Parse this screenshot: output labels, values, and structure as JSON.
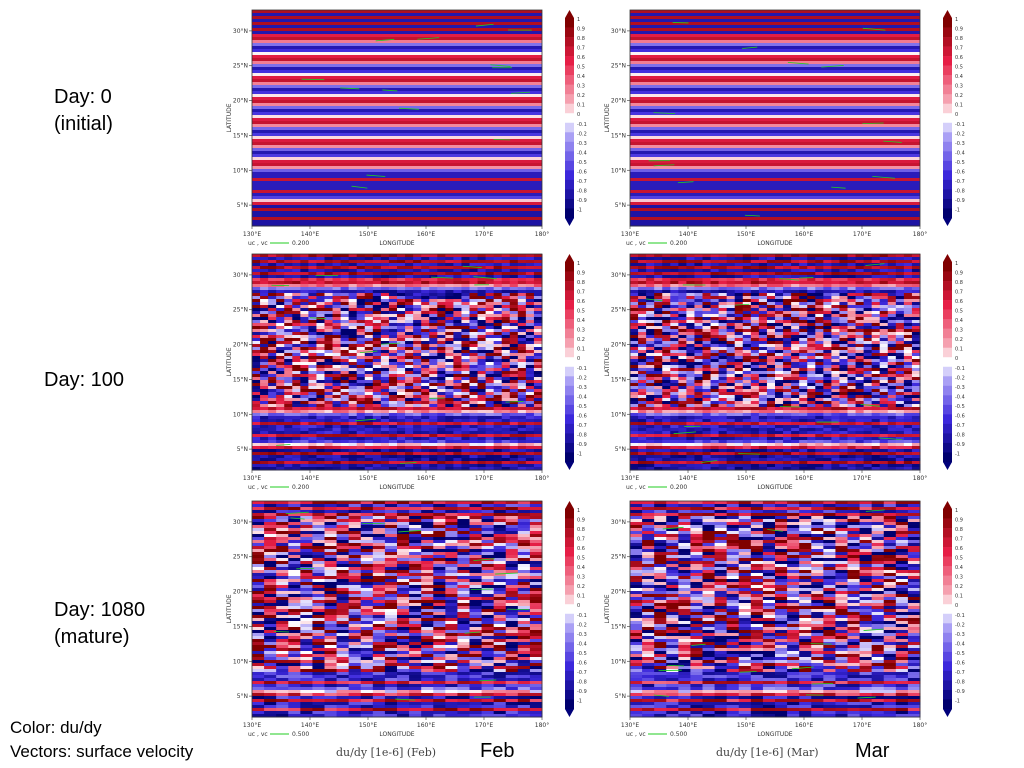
{
  "rows": [
    {
      "label_line1": "Day: 0",
      "label_line2": "(initial)",
      "pattern": "initial"
    },
    {
      "label_line1": "Day: 100",
      "label_line2": "",
      "pattern": "day100"
    },
    {
      "label_line1": "Day: 1080",
      "label_line2": "(mature)",
      "pattern": "mature"
    }
  ],
  "columns": [
    {
      "month": "Feb",
      "caption": "du/dy [1e-6]  (Feb)"
    },
    {
      "month": "Mar",
      "caption": "du/dy [1e-6]  (Mar)"
    }
  ],
  "notes": {
    "color": "Color: du/dy",
    "vectors": "Vectors: surface velocity"
  },
  "colors": {
    "max": "#800000",
    "pos": "#e8204a",
    "zero": "#ffffff",
    "neg": "#4030e0",
    "min": "#00007a",
    "vectors": "#22cc22"
  },
  "chart_data": {
    "type": "heatmap",
    "xlabel": "LONGITUDE",
    "ylabel": "LATITUDE",
    "x_ticks": [
      "130°E",
      "140°E",
      "150°E",
      "160°E",
      "170°E",
      "180°"
    ],
    "y_ticks": [
      "5°N",
      "10°N",
      "15°N",
      "20°N",
      "25°N",
      "30°N"
    ],
    "xlim": [
      130,
      180
    ],
    "ylim": [
      2,
      33
    ],
    "colorbar_ticks": [
      "1",
      "0.9",
      "0.8",
      "0.7",
      "0.6",
      "0.5",
      "0.4",
      "0.3",
      "0.2",
      "0.1",
      "0",
      "-0.1",
      "-0.2",
      "-0.3",
      "-0.4",
      "-0.5",
      "-0.6",
      "-0.7",
      "-0.8",
      "-0.9",
      "-1"
    ],
    "colorbar_range": [
      -1,
      1
    ],
    "vector_label": "uc , vc",
    "vector_scale": [
      "0.200",
      "0.200",
      "0.500"
    ]
  }
}
